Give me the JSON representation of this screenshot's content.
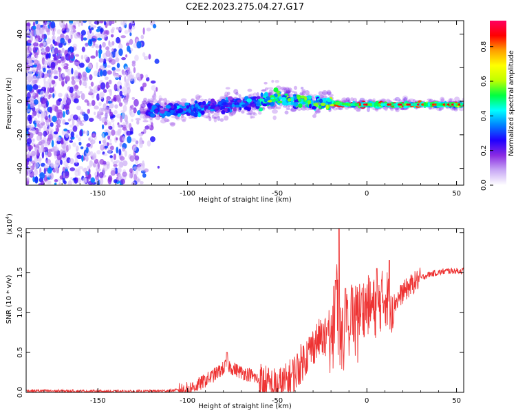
{
  "title": "C2E2.2023.275.04.27.G17",
  "chart_data": [
    {
      "type": "heatmap",
      "xlabel": "Height of straight line (km)",
      "ylabel": "Frequency (Hz)",
      "xlim": [
        -190,
        54
      ],
      "ylim": [
        -50,
        48
      ],
      "xticks": [
        -150,
        -100,
        -50,
        0,
        50
      ],
      "yticks": [
        -40,
        -20,
        0,
        20,
        40
      ],
      "xtick_labels": [
        "-150",
        "-100",
        "-50",
        "0",
        "50"
      ],
      "ytick_labels": [
        "-40",
        "-20",
        "0",
        "20",
        "40"
      ],
      "colorbar": {
        "label": "Normalized spectral amplitude",
        "range": [
          0.0,
          0.95
        ],
        "ticks": [
          0.0,
          0.2,
          0.4,
          0.6,
          0.8
        ],
        "tick_labels": [
          "0.0",
          "0.2",
          "0.4",
          "0.6",
          "0.8"
        ],
        "colormap": [
          "#ffffff",
          "#c8a8f5",
          "#8a2be2",
          "#2000ff",
          "#0080ff",
          "#00ffff",
          "#00ff40",
          "#c0ff00",
          "#ffff00",
          "#ffa000",
          "#ff0000",
          "#ff0060"
        ]
      },
      "ridge": {
        "x": [
          -120,
          -100,
          -80,
          -60,
          -50,
          -40,
          -30,
          -20,
          -10,
          0,
          10,
          20,
          30,
          40,
          54
        ],
        "y": [
          -5,
          -5,
          -3,
          0,
          2,
          0,
          -1,
          -1,
          -2,
          -2,
          -2,
          -2,
          -2,
          -2,
          -2
        ]
      }
    },
    {
      "type": "line",
      "xlabel": "Height of straight line (km)",
      "ylabel": "SNR (10 * v/v)",
      "scale_label": "(x10",
      "scale_exponent": "4",
      "scale_suffix": ")",
      "xlim": [
        -190,
        54
      ],
      "ylim": [
        0,
        2.05
      ],
      "xticks": [
        -150,
        -100,
        -50,
        0,
        50
      ],
      "yticks": [
        0.0,
        0.5,
        1.0,
        1.5,
        2.0
      ],
      "xtick_labels": [
        "-150",
        "-100",
        "-50",
        "0",
        "50"
      ],
      "ytick_labels": [
        "0.0",
        "0.5",
        "1.0",
        "1.5",
        "2.0"
      ],
      "color": "#ee3333",
      "x": [
        -190,
        -160,
        -130,
        -110,
        -100,
        -95,
        -90,
        -85,
        -80,
        -78,
        -75,
        -70,
        -65,
        -60,
        -55,
        -50,
        -45,
        -40,
        -35,
        -30,
        -25,
        -20,
        -17,
        -15,
        -12,
        -10,
        -5,
        0,
        5,
        10,
        15,
        20,
        25,
        30,
        35,
        40,
        45,
        50,
        54
      ],
      "y": [
        0.02,
        0.015,
        0.01,
        0.02,
        0.04,
        0.08,
        0.15,
        0.22,
        0.3,
        0.35,
        0.3,
        0.25,
        0.22,
        0.15,
        0.08,
        0.06,
        0.12,
        0.25,
        0.42,
        0.58,
        0.72,
        0.8,
        1.3,
        0.72,
        0.95,
        1.05,
        1.0,
        1.1,
        1.05,
        1.2,
        1.1,
        1.25,
        1.35,
        1.43,
        1.48,
        1.5,
        1.52,
        1.52,
        1.52
      ],
      "peaks": [
        {
          "x": -15.5,
          "y": 2.05
        },
        {
          "x": -17.5,
          "y": 1.4
        },
        {
          "x": -12,
          "y": 1.3
        },
        {
          "x": 12.5,
          "y": 1.65
        },
        {
          "x": 5.5,
          "y": 1.55
        },
        {
          "x": -78,
          "y": 0.5
        }
      ]
    }
  ]
}
